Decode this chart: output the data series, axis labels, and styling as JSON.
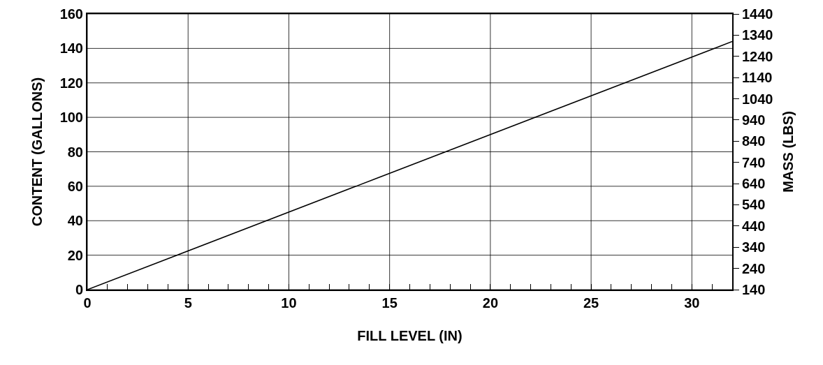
{
  "chart_data": {
    "type": "line",
    "xlabel": "FILL LEVEL (IN)",
    "ylabel": "CONTENT (GALLONS)",
    "y2label": "MASS (LBS)",
    "x": [
      0,
      32
    ],
    "series": [
      {
        "color": "#000000",
        "values": [
          0,
          144
        ]
      }
    ],
    "xlim": [
      0,
      32
    ],
    "xticks": [
      0,
      {
        "value": 1,
        "label": null
      },
      {
        "value": 2,
        "label": null
      },
      {
        "value": 3,
        "label": null
      },
      {
        "value": 4,
        "label": null
      },
      5,
      {
        "value": 6,
        "label": null
      },
      {
        "value": 7,
        "label": null
      },
      {
        "value": 8,
        "label": null
      },
      {
        "value": 9,
        "label": null
      },
      10,
      {
        "value": 11,
        "label": null
      },
      {
        "value": 12,
        "label": null
      },
      {
        "value": 13,
        "label": null
      },
      {
        "value": 14,
        "label": null
      },
      15,
      {
        "value": 16,
        "label": null
      },
      {
        "value": 17,
        "label": null
      },
      {
        "value": 18,
        "label": null
      },
      {
        "value": 19,
        "label": null
      },
      20,
      {
        "value": 21,
        "label": null
      },
      {
        "value": 22,
        "label": null
      },
      {
        "value": 23,
        "label": null
      },
      {
        "value": 24,
        "label": null
      },
      25,
      {
        "value": 26,
        "label": null
      },
      {
        "value": 27,
        "label": null
      },
      {
        "value": 28,
        "label": null
      },
      {
        "value": 29,
        "label": null
      },
      30,
      {
        "value": 31,
        "label": null
      }
    ],
    "ylim": [
      0,
      160
    ],
    "yticks": [
      0,
      20,
      40,
      60,
      80,
      100,
      120,
      140,
      160
    ],
    "y2lim": [
      140,
      1440
    ],
    "y2ticks": [
      140,
      240,
      340,
      440,
      540,
      640,
      740,
      840,
      940,
      1040,
      1140,
      1240,
      1340,
      1440
    ],
    "grid": true,
    "marker": "none",
    "line_style": "solid"
  }
}
